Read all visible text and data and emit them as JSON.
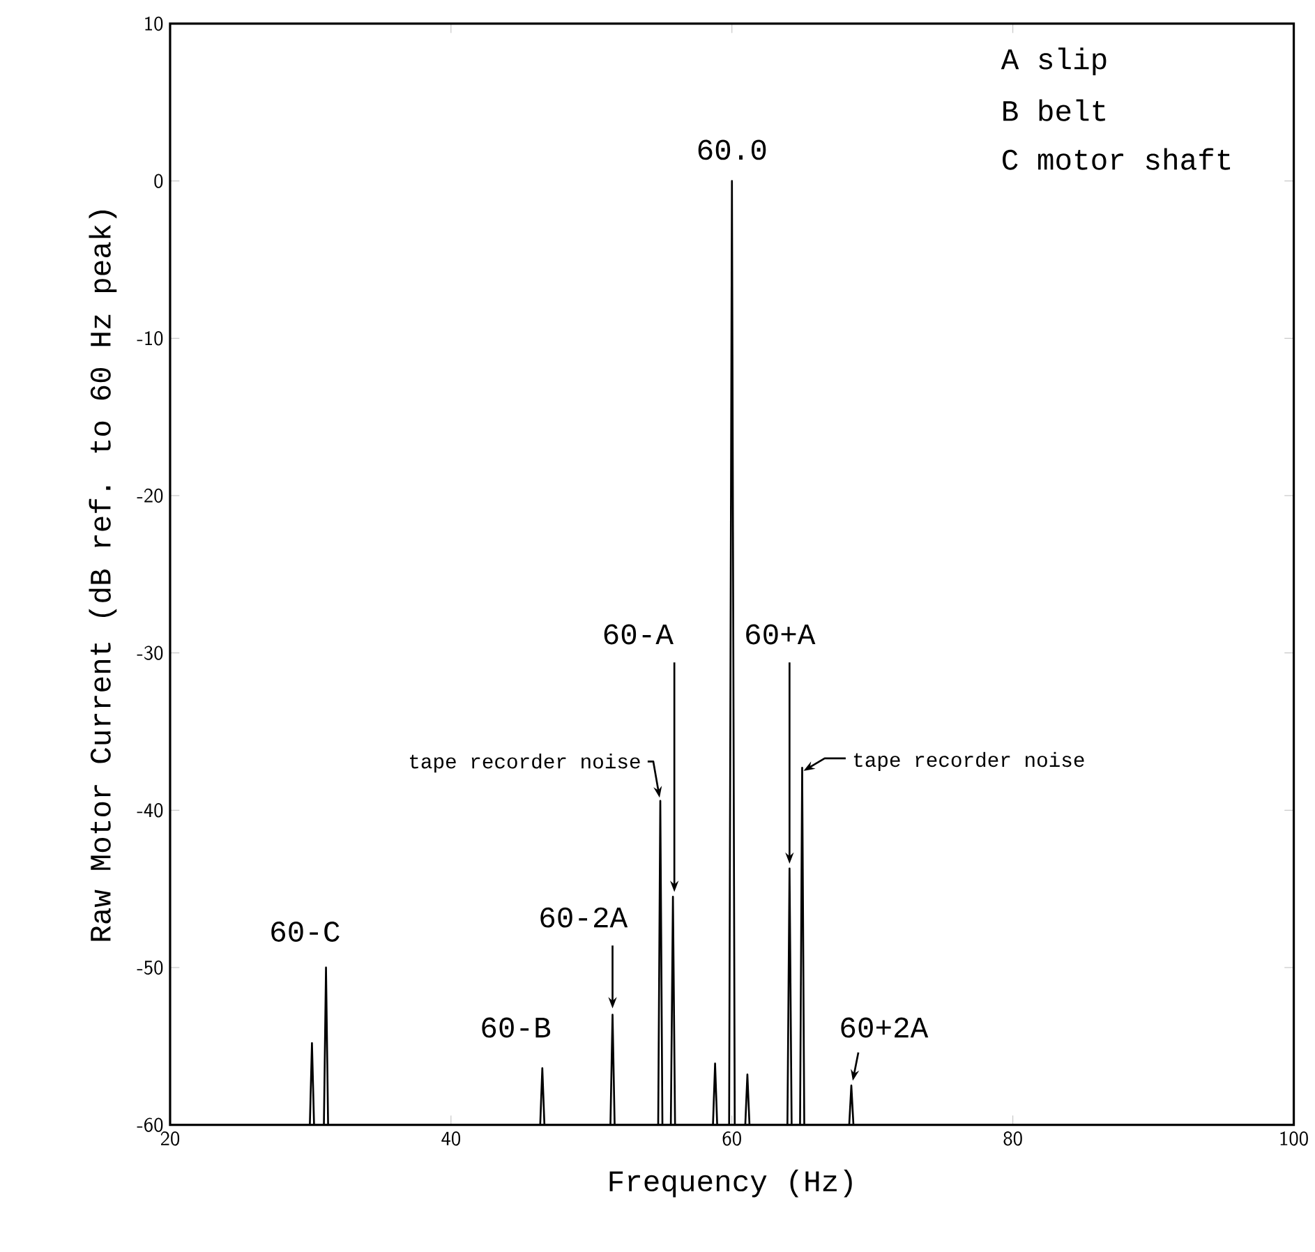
{
  "chart_data": {
    "type": "line",
    "xlabel": "Frequency (Hz)",
    "ylabel": "Raw Motor Current (dB ref. to 60 Hz peak)",
    "x": [
      20,
      29.95,
      30.1,
      30.25,
      30.95,
      31.1,
      31.25,
      46.35,
      46.5,
      46.65,
      51.35,
      51.5,
      51.65,
      54.75,
      54.9,
      55.05,
      55.65,
      55.8,
      55.95,
      58.65,
      58.8,
      58.95,
      59.8,
      60.0,
      60.2,
      60.95,
      61.1,
      61.25,
      63.95,
      64.1,
      64.25,
      64.85,
      65.0,
      65.15,
      68.35,
      68.5,
      68.65,
      100
    ],
    "series": [
      {
        "color": "#000000",
        "values": [
          -60,
          -60,
          -54.8,
          -60,
          -60,
          -50.0,
          -60,
          -60,
          -56.4,
          -60,
          -60,
          -53.0,
          -60,
          -60,
          -39.4,
          -60,
          -60,
          -45.5,
          -60,
          -60,
          -56.1,
          -60,
          -60,
          0,
          -60,
          -60,
          -56.8,
          -60,
          -60,
          -43.7,
          -60,
          -60,
          -37.3,
          -60,
          -60,
          -57.5,
          -60,
          -60
        ]
      }
    ],
    "xlim": [
      20,
      100
    ],
    "ylim": [
      -60,
      10
    ],
    "xticks": [
      20,
      40,
      60,
      80,
      100
    ],
    "yticks": [
      -60,
      -50,
      -40,
      -30,
      -20,
      -10,
      0,
      10
    ],
    "grid": false,
    "marker": "none",
    "line_style": "solid",
    "annotations": [
      {
        "text": "60.0",
        "x": 60.0,
        "y": 0
      },
      {
        "text": "60-C",
        "x": 31.1,
        "y": -50.0
      },
      {
        "text": "60-B",
        "x": 46.5,
        "y": -56.4
      },
      {
        "text": "60-2A",
        "x": 51.5,
        "y": -53.0
      },
      {
        "text": "60-A",
        "x": 55.8,
        "y": -45.5
      },
      {
        "text": "tape recorder noise",
        "x": 54.9,
        "y": -39.4
      },
      {
        "text": "60+A",
        "x": 64.1,
        "y": -43.7
      },
      {
        "text": "tape recorder noise",
        "x": 65.0,
        "y": -37.3
      },
      {
        "text": "60+2A",
        "x": 68.5,
        "y": -57.5
      },
      "A  slip",
      "B  belt",
      "C  motor shaft"
    ]
  }
}
